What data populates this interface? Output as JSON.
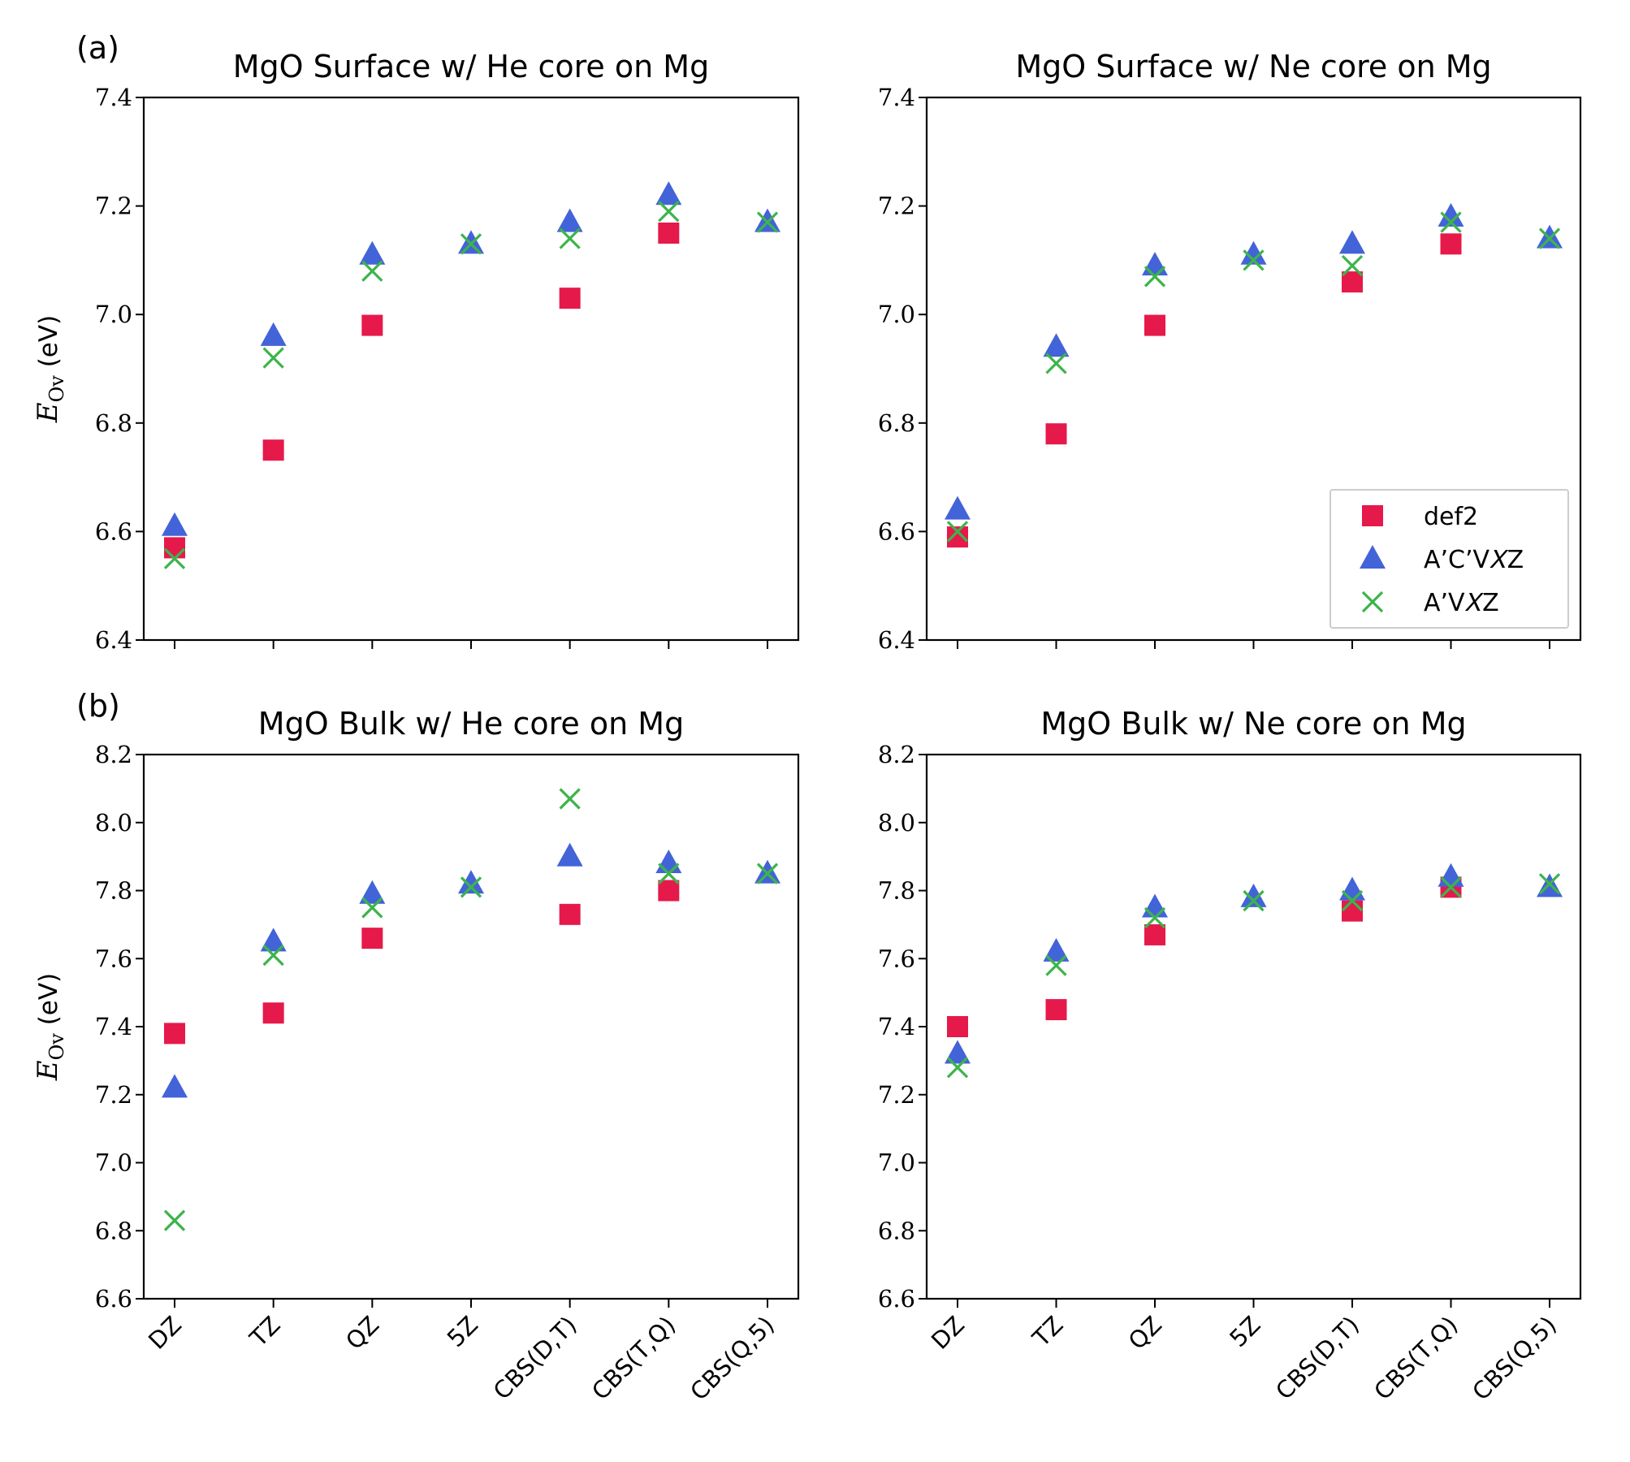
{
  "colors": {
    "def2": "#e6194b",
    "acv": "#4363d8",
    "av": "#3cb44b"
  },
  "legend": [
    {
      "key": "def2",
      "label": "def2",
      "marker": "square"
    },
    {
      "key": "acv",
      "label": "A’C’V𝑋Z",
      "marker": "triangle"
    },
    {
      "key": "av",
      "label": "A’V𝑋Z",
      "marker": "x"
    }
  ],
  "row_labels": [
    "(a)",
    "(b)"
  ],
  "chart_data": [
    {
      "type": "scatter",
      "title": "MgO Surface w/ He core on Mg",
      "ylabel": "E_Ov (eV)",
      "ylim": [
        6.4,
        7.4
      ],
      "yticks": [
        "6.4",
        "6.6",
        "6.8",
        "7.0",
        "7.2",
        "7.4"
      ],
      "categories": [
        "DZ",
        "TZ",
        "QZ",
        "5Z",
        "CBS(D,T)",
        "CBS(T,Q)",
        "CBS(Q,5)"
      ],
      "series": [
        {
          "name": "def2",
          "key": "def2",
          "values": [
            6.57,
            6.75,
            6.98,
            null,
            7.03,
            7.15,
            null
          ]
        },
        {
          "name": "A’C’V𝑋Z",
          "key": "acv",
          "values": [
            6.61,
            6.96,
            7.11,
            7.13,
            7.17,
            7.22,
            7.17
          ]
        },
        {
          "name": "A’V𝑋Z",
          "key": "av",
          "values": [
            6.55,
            6.92,
            7.08,
            7.13,
            7.14,
            7.19,
            7.17
          ]
        }
      ]
    },
    {
      "type": "scatter",
      "title": "MgO Surface w/ Ne core on Mg",
      "ylabel": "",
      "ylim": [
        6.4,
        7.4
      ],
      "yticks": [
        "6.4",
        "6.6",
        "6.8",
        "7.0",
        "7.2",
        "7.4"
      ],
      "categories": [
        "DZ",
        "TZ",
        "QZ",
        "5Z",
        "CBS(D,T)",
        "CBS(T,Q)",
        "CBS(Q,5)"
      ],
      "legend": true,
      "series": [
        {
          "name": "def2",
          "key": "def2",
          "values": [
            6.59,
            6.78,
            6.98,
            null,
            7.06,
            7.13,
            null
          ]
        },
        {
          "name": "A’C’V𝑋Z",
          "key": "acv",
          "values": [
            6.64,
            6.94,
            7.09,
            7.11,
            7.13,
            7.18,
            7.14
          ]
        },
        {
          "name": "A’V𝑋Z",
          "key": "av",
          "values": [
            6.6,
            6.91,
            7.07,
            7.1,
            7.09,
            7.17,
            7.14
          ]
        }
      ]
    },
    {
      "type": "scatter",
      "title": "MgO Bulk w/ He core on Mg",
      "ylabel": "E_Ov (eV)",
      "ylim": [
        6.6,
        8.2
      ],
      "yticks": [
        "6.6",
        "6.8",
        "7.0",
        "7.2",
        "7.4",
        "7.6",
        "7.8",
        "8.0",
        "8.2"
      ],
      "categories": [
        "DZ",
        "TZ",
        "QZ",
        "5Z",
        "CBS(D,T)",
        "CBS(T,Q)",
        "CBS(Q,5)"
      ],
      "series": [
        {
          "name": "def2",
          "key": "def2",
          "values": [
            7.38,
            7.44,
            7.66,
            null,
            7.73,
            7.8,
            null
          ]
        },
        {
          "name": "A’C’V𝑋Z",
          "key": "acv",
          "values": [
            7.22,
            7.65,
            7.79,
            7.82,
            7.9,
            7.88,
            7.85
          ]
        },
        {
          "name": "A’V𝑋Z",
          "key": "av",
          "values": [
            6.83,
            7.61,
            7.75,
            7.81,
            8.07,
            7.85,
            7.85
          ]
        }
      ]
    },
    {
      "type": "scatter",
      "title": "MgO Bulk w/ Ne core on Mg",
      "ylabel": "",
      "ylim": [
        6.6,
        8.2
      ],
      "yticks": [
        "6.6",
        "6.8",
        "7.0",
        "7.2",
        "7.4",
        "7.6",
        "7.8",
        "8.0",
        "8.2"
      ],
      "categories": [
        "DZ",
        "TZ",
        "QZ",
        "5Z",
        "CBS(D,T)",
        "CBS(T,Q)",
        "CBS(Q,5)"
      ],
      "series": [
        {
          "name": "def2",
          "key": "def2",
          "values": [
            7.4,
            7.45,
            7.67,
            null,
            7.74,
            7.81,
            null
          ]
        },
        {
          "name": "A’C’V𝑋Z",
          "key": "acv",
          "values": [
            7.32,
            7.62,
            7.75,
            7.78,
            7.8,
            7.84,
            7.81
          ]
        },
        {
          "name": "A’V𝑋Z",
          "key": "av",
          "values": [
            7.28,
            7.58,
            7.72,
            7.77,
            7.77,
            7.81,
            7.82
          ]
        }
      ]
    }
  ]
}
